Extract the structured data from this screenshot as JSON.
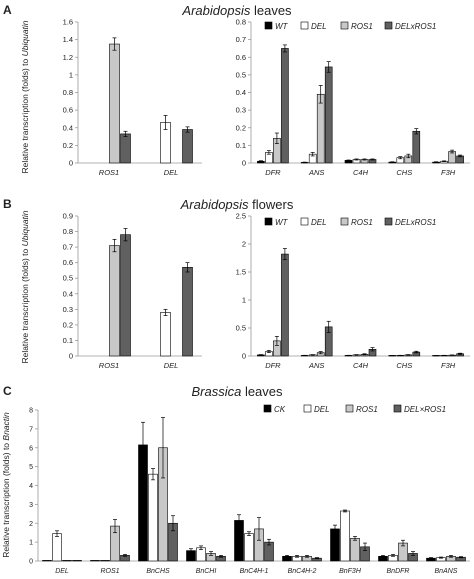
{
  "figure": {
    "panels": [
      {
        "letter": "A",
        "title_italic": "Arabidopsis",
        "title_rest": " leaves"
      },
      {
        "letter": "B",
        "title_italic": "Arabidopsis",
        "title_rest": " flowers"
      },
      {
        "letter": "C",
        "title_italic": "Brassica",
        "title_rest": " leaves"
      }
    ],
    "ylabels": {
      "ubiquatin": {
        "prefix": "Relative transcription (folds) to ",
        "gene": "Ubiquatin"
      },
      "bnactin": {
        "prefix": "Relative transcription (folds) to ",
        "gene": "Bnactin"
      }
    },
    "legend_ab": [
      "WT",
      "DEL",
      "ROS1",
      "DELxROS1"
    ],
    "legend_c": [
      "CK",
      "DEL",
      "ROS1",
      "DEL×ROS1"
    ]
  },
  "colors": {
    "WT": "#000000",
    "CK": "#000000",
    "DEL": "#ffffff",
    "ROS1": "#c8c8c8",
    "DELxROS1": "#606060",
    "axis": "#9a9a9a",
    "text": "#222222"
  },
  "chart_data": [
    {
      "id": "A1",
      "type": "bar",
      "title": "Arabidopsis leaves",
      "ylabel": "Relative transcription (folds) to Ubiquatin",
      "ylim": [
        0,
        1.6
      ],
      "yticks": [
        "0",
        "0.2",
        "0.4",
        "0.6",
        "0.8",
        "1",
        "1.2",
        "1.4",
        "1.6"
      ],
      "categories": [
        "ROS1",
        "DEL"
      ],
      "series": [
        {
          "name": "WT",
          "values": [
            0,
            0
          ],
          "err": [
            0,
            0
          ]
        },
        {
          "name": "DEL",
          "values": [
            0,
            0.46
          ],
          "err": [
            0,
            0.08
          ]
        },
        {
          "name": "ROS1",
          "values": [
            1.35,
            0
          ],
          "err": [
            0.07,
            0
          ]
        },
        {
          "name": "DELxROS1",
          "values": [
            0.33,
            0.38
          ],
          "err": [
            0.03,
            0.03
          ]
        }
      ]
    },
    {
      "id": "A2",
      "type": "bar",
      "title": "Arabidopsis leaves",
      "ylim": [
        0,
        0.8
      ],
      "yticks": [
        "0",
        "0.1",
        "0.2",
        "0.3",
        "0.4",
        "0.5",
        "0.6",
        "0.7",
        "0.8"
      ],
      "categories": [
        "DFR",
        "ANS",
        "C4H",
        "CHS",
        "F3H"
      ],
      "series": [
        {
          "name": "WT",
          "values": [
            0.01,
            0.003,
            0.015,
            0.005,
            0.005
          ],
          "err": [
            0.003,
            0.002,
            0.002,
            0.002,
            0.002
          ]
        },
        {
          "name": "DEL",
          "values": [
            0.06,
            0.05,
            0.02,
            0.03,
            0.01
          ],
          "err": [
            0.01,
            0.01,
            0.003,
            0.006,
            0.002
          ]
        },
        {
          "name": "ROS1",
          "values": [
            0.14,
            0.39,
            0.02,
            0.04,
            0.065
          ],
          "err": [
            0.03,
            0.05,
            0.003,
            0.01,
            0.008
          ]
        },
        {
          "name": "DELxROS1",
          "values": [
            0.65,
            0.545,
            0.02,
            0.18,
            0.04
          ],
          "err": [
            0.02,
            0.03,
            0.003,
            0.015,
            0.005
          ]
        }
      ]
    },
    {
      "id": "B1",
      "type": "bar",
      "title": "Arabidopsis flowers",
      "ylabel": "Relative transcription (folds) to Ubiquatin",
      "ylim": [
        0,
        0.9
      ],
      "yticks": [
        "0",
        "0.1",
        "0.2",
        "0.3",
        "0.4",
        "0.5",
        "0.6",
        "0.7",
        "0.8",
        "0.9"
      ],
      "categories": [
        "ROS1",
        "DEL"
      ],
      "series": [
        {
          "name": "WT",
          "values": [
            0,
            0
          ],
          "err": [
            0,
            0
          ]
        },
        {
          "name": "DEL",
          "values": [
            0,
            0.28
          ],
          "err": [
            0,
            0.02
          ]
        },
        {
          "name": "ROS1",
          "values": [
            0.71,
            0
          ],
          "err": [
            0.04,
            0
          ]
        },
        {
          "name": "DELxROS1",
          "values": [
            0.78,
            0.57
          ],
          "err": [
            0.04,
            0.03
          ]
        }
      ]
    },
    {
      "id": "B2",
      "type": "bar",
      "title": "Arabidopsis flowers",
      "ylim": [
        0,
        2.5
      ],
      "yticks": [
        "0",
        "0.5",
        "1",
        "1.5",
        "2",
        "2.5"
      ],
      "categories": [
        "DFR",
        "ANS",
        "C4H",
        "CHS",
        "F3H"
      ],
      "series": [
        {
          "name": "WT",
          "values": [
            0.02,
            0.01,
            0.01,
            0.005,
            0.005
          ],
          "err": [
            0.005,
            0.003,
            0.003,
            0.002,
            0.002
          ]
        },
        {
          "name": "DEL",
          "values": [
            0.08,
            0.02,
            0.02,
            0.01,
            0.01
          ],
          "err": [
            0.02,
            0.005,
            0.005,
            0.003,
            0.003
          ]
        },
        {
          "name": "ROS1",
          "values": [
            0.27,
            0.06,
            0.03,
            0.02,
            0.015
          ],
          "err": [
            0.08,
            0.02,
            0.01,
            0.005,
            0.004
          ]
        },
        {
          "name": "DELxROS1",
          "values": [
            1.82,
            0.52,
            0.12,
            0.07,
            0.04
          ],
          "err": [
            0.1,
            0.1,
            0.03,
            0.015,
            0.01
          ]
        }
      ]
    },
    {
      "id": "C",
      "type": "bar",
      "title": "Brassica leaves",
      "ylabel": "Relative transcription (folds) to Bnactin",
      "ylim": [
        0,
        8
      ],
      "yticks": [
        "0",
        "1",
        "2",
        "3",
        "4",
        "5",
        "6",
        "7",
        "8"
      ],
      "categories": [
        "DEL",
        "ROS1",
        "BnCHS",
        "BnCHI",
        "BnC4H-1",
        "BnC4H-2",
        "BnF3H",
        "BnDFR",
        "BnANS"
      ],
      "series": [
        {
          "name": "CK",
          "values": [
            0,
            0,
            6.15,
            0.55,
            2.15,
            0.25,
            1.7,
            0.25,
            0.15
          ],
          "err": [
            0,
            0,
            1.2,
            0.1,
            0.3,
            0.05,
            0.2,
            0.05,
            0.03
          ]
        },
        {
          "name": "DEL",
          "values": [
            1.45,
            0.02,
            4.6,
            0.7,
            1.45,
            0.25,
            2.65,
            0.3,
            0.18
          ],
          "err": [
            0.15,
            0,
            0.3,
            0.1,
            0.1,
            0.05,
            0.05,
            0.05,
            0.03
          ]
        },
        {
          "name": "ROS1",
          "values": [
            0,
            1.85,
            6.0,
            0.4,
            1.7,
            0.25,
            1.2,
            0.95,
            0.25
          ],
          "err": [
            0,
            0.35,
            1.6,
            0.1,
            0.6,
            0.05,
            0.1,
            0.15,
            0.05
          ]
        },
        {
          "name": "DEL×ROS1",
          "values": [
            0.02,
            0.3,
            2.0,
            0.25,
            1.0,
            0.15,
            0.75,
            0.4,
            0.2
          ],
          "err": [
            0,
            0.05,
            0.4,
            0.05,
            0.15,
            0.03,
            0.2,
            0.1,
            0.03
          ]
        }
      ]
    }
  ]
}
